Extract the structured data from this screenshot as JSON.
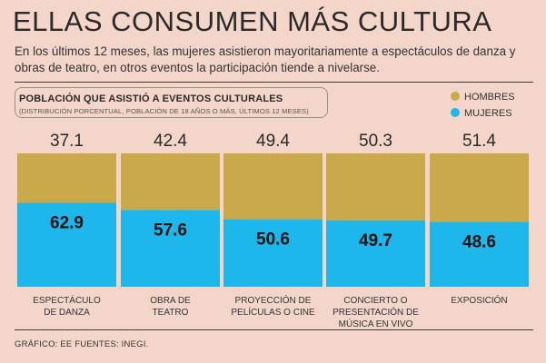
{
  "header": {
    "title": "ELLAS CONSUMEN MÁS CULTURA",
    "subtitle": "En los últimos 12 meses, las mujeres asistieron mayoritariamente a espectáculos de danza y obras de teatro, en otros eventos la participación tiende a nivelarse."
  },
  "panel": {
    "title": "POBLACIÓN QUE ASISTIÓ A EVENTOS CULTURALES",
    "note": "(DISTRIBUCIÓN PORCENTUAL, POBLACIÓN DE 18 AÑOS O MÁS, ÚLTIMOS 12 MESES)"
  },
  "legend": {
    "hombres": "HOMBRES",
    "mujeres": "MUJERES"
  },
  "colors": {
    "hombres": "#c9a949",
    "mujeres": "#1eb7ec"
  },
  "chart_data": {
    "type": "bar",
    "stacked": true,
    "title": "POBLACIÓN QUE ASISTIÓ A EVENTOS CULTURALES",
    "subtitle": "(DISTRIBUCIÓN PORCENTUAL, POBLACIÓN DE 18 AÑOS O MÁS, ÚLTIMOS 12 MESES)",
    "categories": [
      [
        "ESPECTÁCULO",
        "DE DANZA"
      ],
      [
        "OBRA DE",
        "TEATRO"
      ],
      [
        "PROYECCIÓN DE",
        "PELÍCULAS O CINE"
      ],
      [
        "CONCIERTO O",
        "PRESENTACIÓN DE",
        "MÚSICA EN VIVO"
      ],
      [
        "EXPOSICIÓN"
      ]
    ],
    "series": [
      {
        "name": "MUJERES",
        "values": [
          62.9,
          57.6,
          50.6,
          49.7,
          48.6
        ]
      },
      {
        "name": "HOMBRES",
        "values": [
          37.1,
          42.4,
          49.4,
          50.3,
          51.4
        ]
      }
    ],
    "ylim": [
      0,
      100
    ],
    "xlabel": "",
    "ylabel": ""
  },
  "footer": {
    "source": "GRÁFICO: EE  FUENTES: INEGI."
  }
}
